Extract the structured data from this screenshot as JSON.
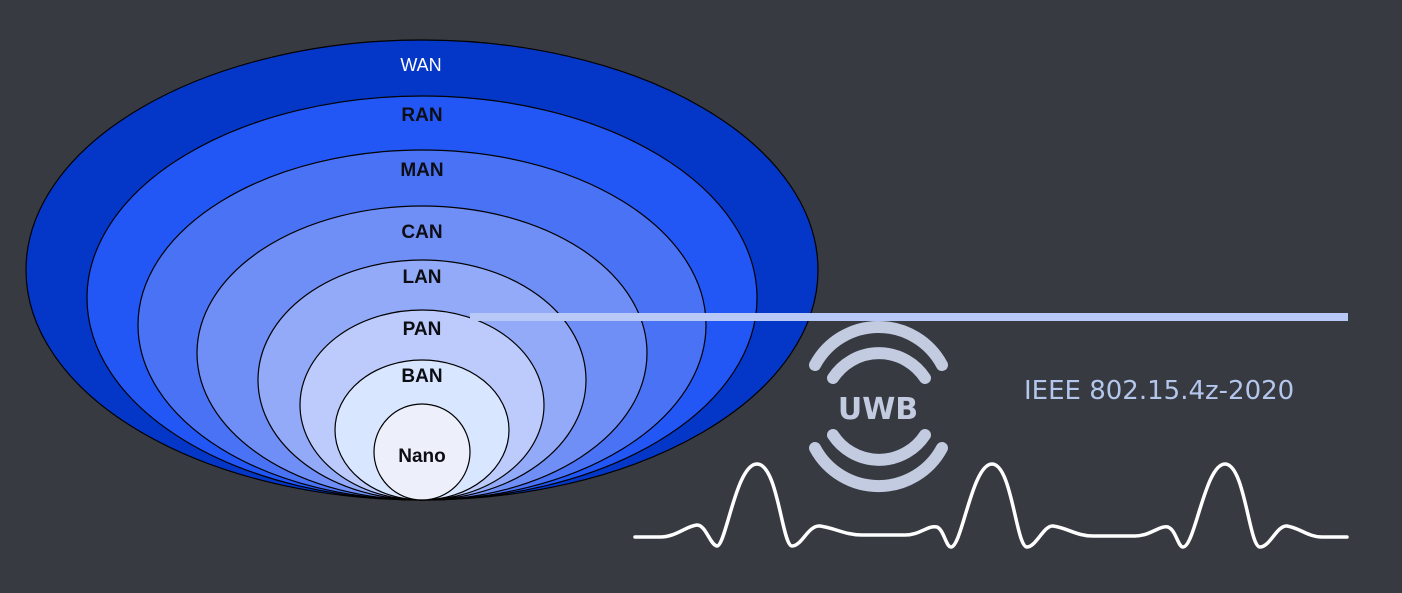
{
  "diagram": {
    "rings": [
      {
        "label": "WAN",
        "color": "#0437c8"
      },
      {
        "label": "RAN",
        "color": "#2357f5"
      },
      {
        "label": "MAN",
        "color": "#4a72f5"
      },
      {
        "label": "CAN",
        "color": "#6f8ff6"
      },
      {
        "label": "LAN",
        "color": "#93aaf8"
      },
      {
        "label": "PAN",
        "color": "#bccbfb"
      },
      {
        "label": "BAN",
        "color": "#d9e6ff"
      },
      {
        "label": "Nano",
        "color": "#edf0fb"
      }
    ],
    "highlight_color": "#b8c9f7",
    "uwb": {
      "label": "UWB",
      "color": "#c2cbe0"
    },
    "standard": "IEEE 802.15.4z-2020",
    "pulse_color": "#ffffff"
  }
}
